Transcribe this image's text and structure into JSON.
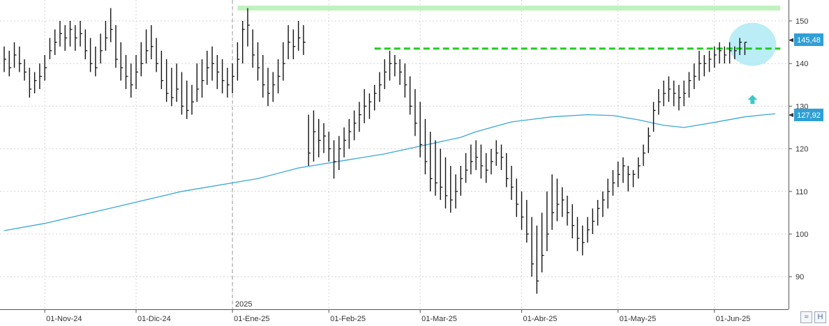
{
  "chart_data": {
    "type": "ohlc",
    "title": "",
    "xlabel": "",
    "ylabel": "",
    "ylim": [
      82,
      156
    ],
    "grid": true,
    "y_ticks": [
      90,
      100,
      110,
      120,
      130,
      140,
      150
    ],
    "y_tick_labels": [
      "90",
      "100",
      "110",
      "120",
      "130",
      "140",
      "150"
    ],
    "x_tick_labels": [
      "01-Nov-24",
      "01-Dic-24",
      "01-Ene-25",
      "01-Feb-25",
      "01-Mar-25",
      "01-Abr-25",
      "01-May-25",
      "01-Jun-25"
    ],
    "year_marker": "2025",
    "last_price_label": "145,48",
    "moving_average_label": "127,92",
    "colors": {
      "bars": "#111111",
      "moving_average": "#3aa7d8",
      "resistance_top": "#bff2bd",
      "resistance_dashed": "#22cc22",
      "breakout_highlight": "#aeeaf5",
      "breakout_arrow": "#3ac8c8",
      "badge": "#2f9fd6"
    },
    "price_bars_hlc": [
      [
        144,
        138,
        141
      ],
      [
        143,
        137,
        139
      ],
      [
        145,
        139,
        142
      ],
      [
        144,
        138,
        140
      ],
      [
        141,
        136,
        138
      ],
      [
        139,
        132,
        134
      ],
      [
        138,
        133,
        136
      ],
      [
        140,
        134,
        137
      ],
      [
        142,
        136,
        139
      ],
      [
        146,
        141,
        143
      ],
      [
        148,
        142,
        145
      ],
      [
        150,
        144,
        147
      ],
      [
        149,
        143,
        146
      ],
      [
        150,
        144,
        148
      ],
      [
        149,
        143,
        146
      ],
      [
        150,
        144,
        147
      ],
      [
        148,
        141,
        143
      ],
      [
        146,
        138,
        140
      ],
      [
        144,
        137,
        139
      ],
      [
        147,
        140,
        143
      ],
      [
        150,
        143,
        146
      ],
      [
        153,
        145,
        148
      ],
      [
        149,
        139,
        141
      ],
      [
        145,
        136,
        139
      ],
      [
        142,
        134,
        137
      ],
      [
        140,
        132,
        135
      ],
      [
        142,
        134,
        138
      ],
      [
        145,
        137,
        140
      ],
      [
        148,
        140,
        143
      ],
      [
        149,
        141,
        144
      ],
      [
        146,
        138,
        140
      ],
      [
        143,
        134,
        136
      ],
      [
        141,
        131,
        133
      ],
      [
        139,
        130,
        132
      ],
      [
        140,
        131,
        134
      ],
      [
        138,
        128,
        130
      ],
      [
        136,
        127,
        129
      ],
      [
        135,
        128,
        131
      ],
      [
        140,
        131,
        134
      ],
      [
        141,
        132,
        136
      ],
      [
        143,
        135,
        139
      ],
      [
        144,
        136,
        140
      ],
      [
        142,
        134,
        138
      ],
      [
        141,
        133,
        136
      ],
      [
        139,
        132,
        135
      ],
      [
        140,
        133,
        137
      ],
      [
        145,
        136,
        141
      ],
      [
        150,
        140,
        148
      ],
      [
        153,
        144,
        149
      ],
      [
        148,
        139,
        142
      ],
      [
        145,
        136,
        139
      ],
      [
        142,
        132,
        135
      ],
      [
        139,
        130,
        133
      ],
      [
        138,
        131,
        135
      ],
      [
        141,
        133,
        137
      ],
      [
        145,
        136,
        140
      ],
      [
        149,
        141,
        145
      ],
      [
        148,
        141,
        144
      ],
      [
        150,
        143,
        146
      ],
      [
        149,
        142,
        145
      ],
      [
        128,
        116,
        119
      ],
      [
        129,
        117,
        124
      ],
      [
        127,
        118,
        122
      ],
      [
        126,
        119,
        123
      ],
      [
        124,
        117,
        120
      ],
      [
        122,
        113,
        117
      ],
      [
        123,
        115,
        120
      ],
      [
        125,
        118,
        122
      ],
      [
        127,
        120,
        124
      ],
      [
        129,
        122,
        126
      ],
      [
        131,
        124,
        128
      ],
      [
        134,
        126,
        130
      ],
      [
        133,
        127,
        131
      ],
      [
        135,
        129,
        133
      ],
      [
        138,
        131,
        135
      ],
      [
        141,
        134,
        138
      ],
      [
        143,
        136,
        140
      ],
      [
        142,
        137,
        140
      ],
      [
        141,
        135,
        138
      ],
      [
        140,
        132,
        135
      ],
      [
        137,
        128,
        130
      ],
      [
        134,
        123,
        126
      ],
      [
        131,
        118,
        121
      ],
      [
        127,
        114,
        117
      ],
      [
        124,
        110,
        113
      ],
      [
        122,
        109,
        112
      ],
      [
        120,
        108,
        111
      ],
      [
        118,
        106,
        109
      ],
      [
        116,
        105,
        108
      ],
      [
        114,
        106,
        110
      ],
      [
        116,
        109,
        113
      ],
      [
        119,
        112,
        115
      ],
      [
        121,
        114,
        117
      ],
      [
        122,
        115,
        118
      ],
      [
        121,
        113,
        116
      ],
      [
        119,
        112,
        115
      ],
      [
        120,
        114,
        117
      ],
      [
        122,
        116,
        119
      ],
      [
        121,
        115,
        118
      ],
      [
        119,
        111,
        113
      ],
      [
        116,
        108,
        111
      ],
      [
        113,
        104,
        107
      ],
      [
        110,
        101,
        104
      ],
      [
        108,
        98,
        100
      ],
      [
        104,
        90,
        93
      ],
      [
        102,
        86,
        89
      ],
      [
        105,
        91,
        95
      ],
      [
        110,
        96,
        100
      ],
      [
        114,
        101,
        105
      ],
      [
        113,
        103,
        107
      ],
      [
        111,
        104,
        108
      ],
      [
        109,
        102,
        105
      ],
      [
        107,
        99,
        102
      ],
      [
        104,
        96,
        99
      ],
      [
        102,
        95,
        98
      ],
      [
        104,
        98,
        101
      ],
      [
        106,
        100,
        103
      ],
      [
        108,
        102,
        106
      ],
      [
        110,
        104,
        108
      ],
      [
        113,
        106,
        110
      ],
      [
        115,
        109,
        112
      ],
      [
        117,
        111,
        114
      ],
      [
        118,
        112,
        116
      ],
      [
        116,
        110,
        114
      ],
      [
        115,
        111,
        114
      ],
      [
        118,
        113,
        116
      ],
      [
        121,
        116,
        119
      ],
      [
        125,
        119,
        123
      ],
      [
        131,
        124,
        129
      ],
      [
        134,
        128,
        131
      ],
      [
        136,
        130,
        133
      ],
      [
        137,
        131,
        134
      ],
      [
        136,
        130,
        133
      ],
      [
        135,
        129,
        132
      ],
      [
        136,
        130,
        133
      ],
      [
        138,
        132,
        136
      ],
      [
        140,
        134,
        137
      ],
      [
        143,
        136,
        140
      ],
      [
        142,
        137,
        140
      ],
      [
        143,
        138,
        141
      ],
      [
        144,
        139,
        142
      ],
      [
        145,
        140,
        143
      ],
      [
        144,
        140,
        142
      ],
      [
        145,
        140,
        143
      ],
      [
        144,
        141,
        143
      ],
      [
        146,
        142,
        145
      ],
      [
        145,
        142,
        145
      ]
    ],
    "moving_average": [
      [
        0,
        100.8
      ],
      [
        8,
        102.5
      ],
      [
        20,
        105.8
      ],
      [
        35,
        110.0
      ],
      [
        50,
        113.0
      ],
      [
        58,
        115.5
      ],
      [
        75,
        118.8
      ],
      [
        90,
        122.7
      ],
      [
        93,
        124.0
      ],
      [
        100,
        126.3
      ],
      [
        108,
        127.5
      ],
      [
        115,
        128.0
      ],
      [
        120,
        127.8
      ],
      [
        125,
        126.8
      ],
      [
        130,
        125.5
      ],
      [
        134,
        125.0
      ],
      [
        140,
        126.2
      ],
      [
        146,
        127.5
      ],
      [
        150,
        128.0
      ],
      [
        152,
        128.2
      ]
    ],
    "resistance_top": {
      "y": 153.0,
      "x_from": 46,
      "x_to": 153
    },
    "resistance_dashed": {
      "y": 143.5,
      "x_from": 73,
      "x_to": 153
    },
    "breakout_circle": {
      "x": 147.5,
      "y": 144.5
    },
    "breakout_arrow": {
      "x": 147.5,
      "y": 131.5
    },
    "x_tick_index": [
      8,
      26,
      45,
      64,
      82,
      102,
      121,
      140
    ],
    "year_marker_index": 45
  },
  "ui": {
    "scroll_button_icon": "double-chevron-icon",
    "save_button_icon": "floppy-icon",
    "scroll_glyph": "≈",
    "save_glyph": "H"
  }
}
